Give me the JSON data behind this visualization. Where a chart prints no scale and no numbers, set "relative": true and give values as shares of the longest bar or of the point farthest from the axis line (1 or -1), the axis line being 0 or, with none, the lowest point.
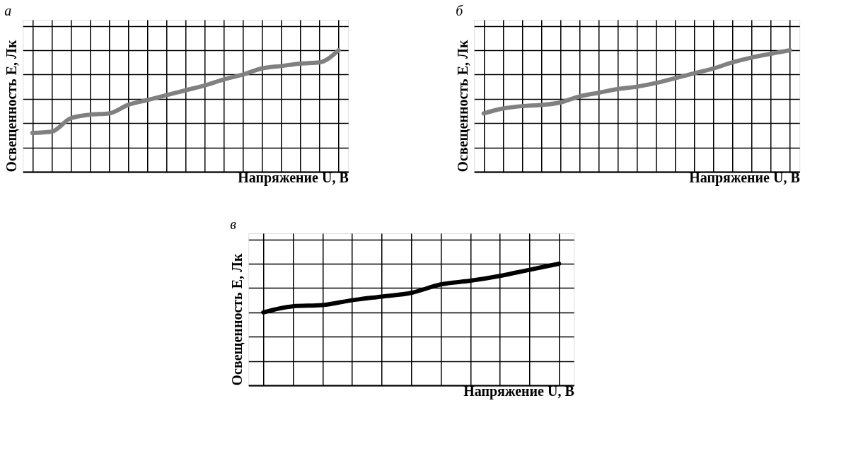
{
  "chart_data": [
    {
      "type": "line",
      "title": "а",
      "xlabel": "Напряжение U, В",
      "ylabel": "Освещенность Е, Лк",
      "relative": true,
      "grid": true,
      "tick_labels": false,
      "categories": [
        null,
        null,
        null,
        null,
        null,
        null,
        null,
        null,
        null,
        null,
        null,
        null,
        null,
        null,
        null,
        null,
        null
      ],
      "series": [
        {
          "color": "#808080",
          "values": [
            0.32,
            0.33,
            0.44,
            0.47,
            0.48,
            0.55,
            0.59,
            0.63,
            0.67,
            0.71,
            0.76,
            0.8,
            0.85,
            0.87,
            0.89,
            0.9,
            1.0
          ]
        }
      ]
    },
    {
      "type": "line",
      "title": "б",
      "xlabel": "Напряжение U, В",
      "ylabel": "Освещенность Е, Лк",
      "relative": true,
      "grid": true,
      "tick_labels": false,
      "categories": [
        null,
        null,
        null,
        null,
        null,
        null,
        null,
        null,
        null,
        null,
        null,
        null,
        null,
        null,
        null,
        null,
        null
      ],
      "series": [
        {
          "color": "#808080",
          "values": [
            0.48,
            0.52,
            0.54,
            0.55,
            0.57,
            0.62,
            0.65,
            0.68,
            0.7,
            0.73,
            0.77,
            0.81,
            0.85,
            0.9,
            0.94,
            0.97,
            1.0
          ]
        }
      ]
    },
    {
      "type": "line",
      "title": "в",
      "xlabel": "Напряжение U, В",
      "ylabel": "Освещенность Е, Лк",
      "relative": true,
      "grid": true,
      "tick_labels": false,
      "categories": [
        null,
        null,
        null,
        null,
        null,
        null,
        null,
        null,
        null,
        null,
        null
      ],
      "series": [
        {
          "color": "#000000",
          "values": [
            0.6,
            0.65,
            0.66,
            0.7,
            0.73,
            0.76,
            0.83,
            0.86,
            0.9,
            0.95,
            1.0
          ]
        }
      ]
    }
  ]
}
